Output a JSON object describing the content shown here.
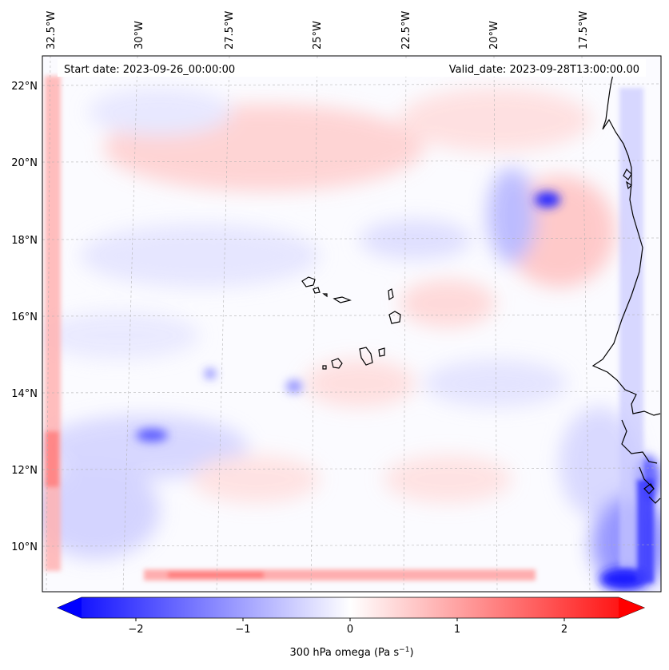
{
  "map": {
    "start_label": "Start date: 2023-09-26_00:00:00",
    "valid_label": "Valid_date: 2023-09-28T13:00:00.00",
    "lon_labels": [
      "32.5°W",
      "30°W",
      "27.5°W",
      "25°W",
      "22.5°W",
      "20°W",
      "17.5°W"
    ],
    "lat_labels": [
      "22°N",
      "20°N",
      "18°N",
      "16°N",
      "14°N",
      "12°N",
      "10°N"
    ],
    "lon_values": [
      -32.5,
      -30,
      -27.5,
      -25,
      -22.5,
      -20,
      -17.5
    ],
    "lat_values": [
      22,
      20,
      18,
      16,
      14,
      12,
      10
    ],
    "field": "300 hPa omega",
    "colormap": "bwr",
    "colors": {
      "negative": "#0000ff",
      "zero": "#ffffff",
      "positive": "#ff0000",
      "coast": "#000000"
    }
  },
  "colorbar": {
    "label_main": "300 hPa omega (Pa s",
    "label_exp": "−1",
    "label_end": ")",
    "ticks": [
      "−2",
      "−1",
      "0",
      "1",
      "2"
    ],
    "tick_values": [
      -2,
      -1,
      0,
      1,
      2
    ],
    "range": [
      -2.5,
      2.5
    ],
    "extend": "both"
  }
}
